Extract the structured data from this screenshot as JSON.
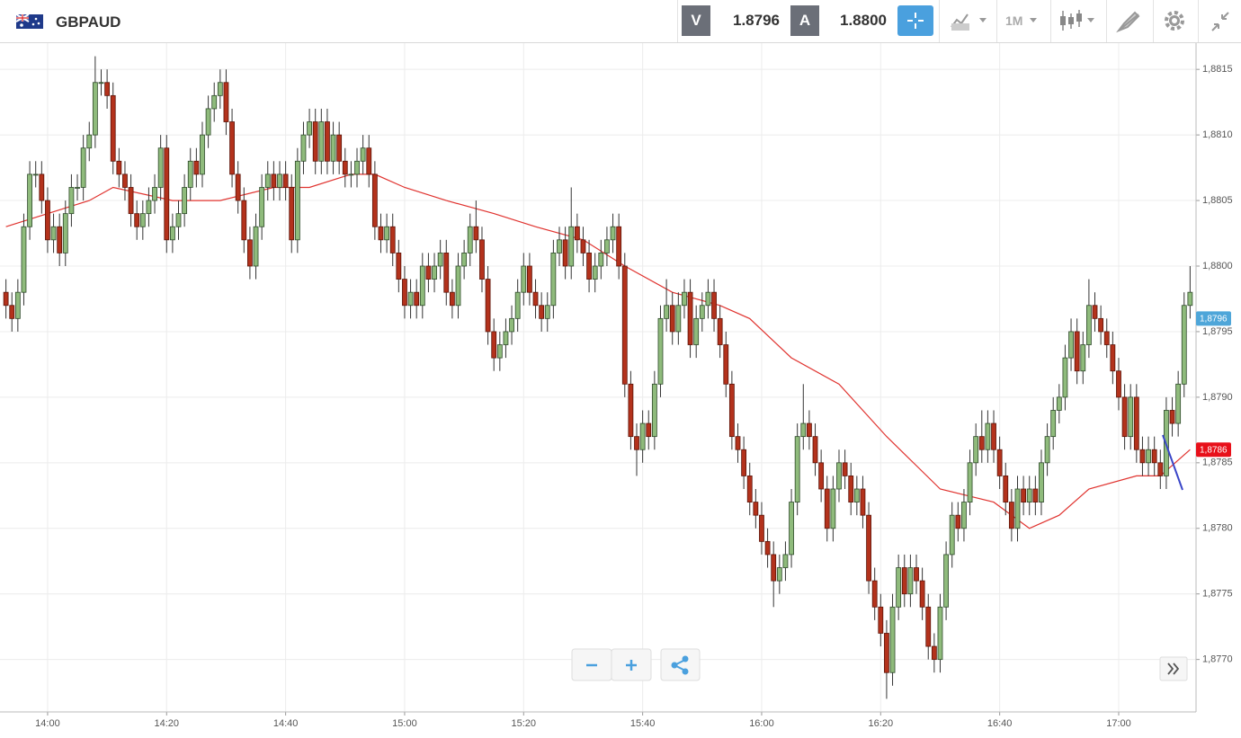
{
  "header": {
    "symbol": "GBPAUD",
    "sell_label": "V",
    "sell_price": "1.8796",
    "buy_label": "A",
    "buy_price": "1.8800",
    "timeframe": "1M"
  },
  "chart_data": {
    "type": "candlestick",
    "x": [
      "13:53",
      "13:54",
      "13:55",
      "13:56",
      "13:57",
      "13:58",
      "13:59",
      "14:00",
      "14:01",
      "14:02",
      "14:03",
      "14:04",
      "14:05",
      "14:06",
      "14:07",
      "14:08",
      "14:09",
      "14:10",
      "14:11",
      "14:12",
      "14:13",
      "14:14",
      "14:15",
      "14:16",
      "14:17",
      "14:18",
      "14:19",
      "14:20",
      "14:21",
      "14:22",
      "14:23",
      "14:24",
      "14:25",
      "14:26",
      "14:27",
      "14:28",
      "14:29",
      "14:30",
      "14:31",
      "14:32",
      "14:33",
      "14:34",
      "14:35",
      "14:36",
      "14:37",
      "14:38",
      "14:39",
      "14:40",
      "14:41",
      "14:42",
      "14:43",
      "14:44",
      "14:45",
      "14:46",
      "14:47",
      "14:48",
      "14:49",
      "14:50",
      "14:51",
      "14:52",
      "14:53",
      "14:54",
      "14:55",
      "14:56",
      "14:57",
      "14:58",
      "14:59",
      "15:00",
      "15:01",
      "15:02",
      "15:03",
      "15:04",
      "15:05",
      "15:06",
      "15:07",
      "15:08",
      "15:09",
      "15:10",
      "15:11",
      "15:12",
      "15:13",
      "15:14",
      "15:15",
      "15:16",
      "15:17",
      "15:18",
      "15:19",
      "15:20",
      "15:21",
      "15:22",
      "15:23",
      "15:24",
      "15:25",
      "15:26",
      "15:27",
      "15:28",
      "15:29",
      "15:30",
      "15:31",
      "15:32",
      "15:33",
      "15:34",
      "15:35",
      "15:36",
      "15:37",
      "15:38",
      "15:39",
      "15:40",
      "15:41",
      "15:42",
      "15:43",
      "15:44",
      "15:45",
      "15:46",
      "15:47",
      "15:48",
      "15:49",
      "15:50",
      "15:51",
      "15:52",
      "15:53",
      "15:54",
      "15:55",
      "15:56",
      "15:57",
      "15:58",
      "15:59",
      "16:00",
      "16:01",
      "16:02",
      "16:03",
      "16:04",
      "16:05",
      "16:06",
      "16:07",
      "16:08",
      "16:09",
      "16:10",
      "16:11",
      "16:12",
      "16:13",
      "16:14",
      "16:15",
      "16:16",
      "16:17",
      "16:18",
      "16:19",
      "16:20",
      "16:21",
      "16:22",
      "16:23",
      "16:24",
      "16:25",
      "16:26",
      "16:27",
      "16:28",
      "16:29",
      "16:30",
      "16:31",
      "16:32",
      "16:33",
      "16:34",
      "16:35",
      "16:36",
      "16:37",
      "16:38",
      "16:39",
      "16:40",
      "16:41",
      "16:42",
      "16:43",
      "16:44",
      "16:45",
      "16:46",
      "16:47",
      "16:48",
      "16:49",
      "16:50",
      "16:51",
      "16:52",
      "16:53",
      "16:54",
      "16:55",
      "16:56",
      "16:57",
      "16:58",
      "16:59",
      "17:00",
      "17:01",
      "17:02",
      "17:03",
      "17:04",
      "17:05",
      "17:06",
      "17:07",
      "17:08",
      "17:09",
      "17:10",
      "17:11",
      "17:12"
    ],
    "open": [
      1.8798,
      1.8797,
      1.8796,
      1.8798,
      1.8803,
      1.8807,
      1.8807,
      1.8805,
      1.8802,
      1.8803,
      1.8801,
      1.8804,
      1.8806,
      1.8806,
      1.8809,
      1.881,
      1.8814,
      1.8814,
      1.8813,
      1.8808,
      1.8807,
      1.8806,
      1.8804,
      1.8803,
      1.8804,
      1.8805,
      1.8806,
      1.8809,
      1.8802,
      1.8803,
      1.8804,
      1.8806,
      1.8808,
      1.8807,
      1.881,
      1.8812,
      1.8813,
      1.8814,
      1.8811,
      1.8807,
      1.8805,
      1.8802,
      1.88,
      1.8803,
      1.8806,
      1.8807,
      1.8806,
      1.8807,
      1.8806,
      1.8802,
      1.8808,
      1.881,
      1.8811,
      1.8808,
      1.8811,
      1.8808,
      1.881,
      1.8808,
      1.8807,
      1.8807,
      1.8808,
      1.8809,
      1.8807,
      1.8803,
      1.8802,
      1.8803,
      1.8801,
      1.8799,
      1.8797,
      1.8798,
      1.8797,
      1.88,
      1.8799,
      1.88,
      1.8801,
      1.8798,
      1.8797,
      1.88,
      1.8801,
      1.8803,
      1.8802,
      1.8799,
      1.8795,
      1.8793,
      1.8794,
      1.8795,
      1.8796,
      1.8798,
      1.88,
      1.8798,
      1.8797,
      1.8796,
      1.8797,
      1.8801,
      1.8802,
      1.88,
      1.8803,
      1.8802,
      1.8801,
      1.8799,
      1.88,
      1.8801,
      1.8802,
      1.8803,
      1.88,
      1.8791,
      1.8787,
      1.8786,
      1.8788,
      1.8787,
      1.8791,
      1.8796,
      1.8797,
      1.8795,
      1.8797,
      1.8798,
      1.8794,
      1.8796,
      1.8797,
      1.8798,
      1.8796,
      1.8794,
      1.8791,
      1.8787,
      1.8786,
      1.8784,
      1.8782,
      1.8781,
      1.8779,
      1.8778,
      1.8776,
      1.8777,
      1.8778,
      1.8782,
      1.8787,
      1.8788,
      1.8787,
      1.8785,
      1.8783,
      1.878,
      1.8783,
      1.8785,
      1.8784,
      1.8782,
      1.8783,
      1.8781,
      1.8776,
      1.8774,
      1.8772,
      1.8769,
      1.8774,
      1.8777,
      1.8775,
      1.8777,
      1.8776,
      1.8774,
      1.8771,
      1.877,
      1.8774,
      1.8778,
      1.8781,
      1.878,
      1.8782,
      1.8785,
      1.8787,
      1.8786,
      1.8788,
      1.8786,
      1.8784,
      1.8782,
      1.878,
      1.8783,
      1.8782,
      1.8783,
      1.8782,
      1.8785,
      1.8787,
      1.8789,
      1.879,
      1.8793,
      1.8795,
      1.8792,
      1.8794,
      1.8797,
      1.8796,
      1.8795,
      1.8794,
      1.8792,
      1.879,
      1.8787,
      1.879,
      1.8786,
      1.8785,
      1.8786,
      1.8785,
      1.8784,
      1.8789,
      1.8788,
      1.8791,
      1.8797
    ],
    "high": [
      1.8799,
      1.8798,
      1.8799,
      1.8804,
      1.8808,
      1.8808,
      1.8808,
      1.8806,
      1.8804,
      1.8804,
      1.8805,
      1.8807,
      1.8807,
      1.881,
      1.8811,
      1.8816,
      1.8815,
      1.8815,
      1.8814,
      1.8809,
      1.8808,
      1.8807,
      1.8805,
      1.8805,
      1.8806,
      1.8807,
      1.881,
      1.881,
      1.8804,
      1.8805,
      1.8807,
      1.8809,
      1.8809,
      1.8811,
      1.8813,
      1.8814,
      1.8815,
      1.8815,
      1.8812,
      1.8808,
      1.8806,
      1.8803,
      1.8804,
      1.8807,
      1.8808,
      1.8808,
      1.8808,
      1.8808,
      1.8807,
      1.8809,
      1.8811,
      1.8812,
      1.8812,
      1.8812,
      1.8812,
      1.8811,
      1.8811,
      1.8809,
      1.8808,
      1.8809,
      1.881,
      1.881,
      1.8808,
      1.8804,
      1.8804,
      1.8804,
      1.8802,
      1.88,
      1.8799,
      1.8799,
      1.8801,
      1.8801,
      1.8801,
      1.8802,
      1.8802,
      1.8799,
      1.8801,
      1.8802,
      1.8804,
      1.8805,
      1.8803,
      1.88,
      1.8796,
      1.8795,
      1.8796,
      1.8797,
      1.8799,
      1.8801,
      1.8801,
      1.8799,
      1.8798,
      1.8798,
      1.8802,
      1.8803,
      1.8803,
      1.8806,
      1.8804,
      1.8803,
      1.8802,
      1.8801,
      1.8802,
      1.8803,
      1.8804,
      1.8804,
      1.8801,
      1.8792,
      1.8788,
      1.8789,
      1.8789,
      1.8792,
      1.8797,
      1.8799,
      1.8798,
      1.8798,
      1.8799,
      1.8799,
      1.8797,
      1.8798,
      1.8799,
      1.8799,
      1.8797,
      1.8795,
      1.8792,
      1.8788,
      1.8787,
      1.8785,
      1.8783,
      1.8782,
      1.878,
      1.8779,
      1.8778,
      1.8779,
      1.8783,
      1.8788,
      1.8791,
      1.8789,
      1.8788,
      1.8786,
      1.8784,
      1.8784,
      1.8786,
      1.8786,
      1.8785,
      1.8784,
      1.8784,
      1.8782,
      1.8777,
      1.8775,
      1.8773,
      1.8775,
      1.8778,
      1.8778,
      1.8778,
      1.8778,
      1.8777,
      1.8775,
      1.8772,
      1.8775,
      1.8779,
      1.8782,
      1.8782,
      1.8783,
      1.8786,
      1.8788,
      1.8789,
      1.8789,
      1.8789,
      1.8787,
      1.8785,
      1.8783,
      1.8784,
      1.8784,
      1.8784,
      1.8784,
      1.8786,
      1.8788,
      1.879,
      1.8791,
      1.8794,
      1.8796,
      1.8796,
      1.8795,
      1.8799,
      1.8798,
      1.8797,
      1.8796,
      1.8795,
      1.8793,
      1.8791,
      1.8791,
      1.8791,
      1.8787,
      1.8787,
      1.8787,
      1.8786,
      1.879,
      1.879,
      1.8792,
      1.8798,
      1.88
    ],
    "low": [
      1.8796,
      1.8795,
      1.8795,
      1.8797,
      1.8802,
      1.8806,
      1.8804,
      1.8801,
      1.8801,
      1.88,
      1.88,
      1.8803,
      1.8805,
      1.8805,
      1.8808,
      1.8809,
      1.8813,
      1.8812,
      1.8807,
      1.8806,
      1.8805,
      1.8803,
      1.8802,
      1.8802,
      1.8803,
      1.8804,
      1.8805,
      1.8801,
      1.8801,
      1.8802,
      1.8803,
      1.8805,
      1.8806,
      1.8806,
      1.8809,
      1.8811,
      1.8812,
      1.881,
      1.8806,
      1.8804,
      1.8801,
      1.8799,
      1.8799,
      1.8802,
      1.8805,
      1.8805,
      1.8805,
      1.8805,
      1.8801,
      1.8801,
      1.8807,
      1.8809,
      1.8807,
      1.8807,
      1.8807,
      1.8807,
      1.8807,
      1.8806,
      1.8806,
      1.8806,
      1.8807,
      1.8806,
      1.8802,
      1.8801,
      1.8801,
      1.88,
      1.8798,
      1.8796,
      1.8796,
      1.8796,
      1.8796,
      1.8798,
      1.8798,
      1.8799,
      1.8797,
      1.8796,
      1.8796,
      1.8799,
      1.88,
      1.8801,
      1.8798,
      1.8794,
      1.8792,
      1.8792,
      1.8793,
      1.8794,
      1.8795,
      1.8797,
      1.8797,
      1.8796,
      1.8795,
      1.8795,
      1.8796,
      1.88,
      1.8799,
      1.8799,
      1.8801,
      1.88,
      1.8798,
      1.8798,
      1.8799,
      1.88,
      1.8801,
      1.8799,
      1.879,
      1.8786,
      1.8784,
      1.8785,
      1.8786,
      1.8786,
      1.879,
      1.8795,
      1.8794,
      1.8794,
      1.8796,
      1.8793,
      1.8793,
      1.8795,
      1.8796,
      1.8795,
      1.8793,
      1.879,
      1.8786,
      1.8785,
      1.8783,
      1.8781,
      1.878,
      1.8778,
      1.8777,
      1.8774,
      1.8775,
      1.8776,
      1.8777,
      1.8781,
      1.8786,
      1.8786,
      1.8784,
      1.8782,
      1.8779,
      1.8779,
      1.8782,
      1.8783,
      1.8781,
      1.8781,
      1.878,
      1.8775,
      1.8773,
      1.8771,
      1.8767,
      1.8768,
      1.8773,
      1.8774,
      1.8774,
      1.8775,
      1.8773,
      1.877,
      1.8769,
      1.8769,
      1.8773,
      1.8777,
      1.8779,
      1.8779,
      1.8781,
      1.8784,
      1.8785,
      1.8785,
      1.8785,
      1.8783,
      1.8781,
      1.8779,
      1.8779,
      1.8781,
      1.8781,
      1.8781,
      1.8781,
      1.8784,
      1.8786,
      1.8788,
      1.8789,
      1.8792,
      1.8791,
      1.8791,
      1.8793,
      1.8795,
      1.8794,
      1.8793,
      1.8791,
      1.8789,
      1.8786,
      1.8786,
      1.8785,
      1.8784,
      1.8784,
      1.8784,
      1.8783,
      1.8783,
      1.8787,
      1.8787,
      1.879,
      1.8796
    ],
    "close": [
      1.8797,
      1.8796,
      1.8798,
      1.8803,
      1.8807,
      1.8807,
      1.8805,
      1.8802,
      1.8803,
      1.8801,
      1.8804,
      1.8806,
      1.8806,
      1.8809,
      1.881,
      1.8814,
      1.8814,
      1.8813,
      1.8808,
      1.8807,
      1.8806,
      1.8804,
      1.8803,
      1.8804,
      1.8805,
      1.8806,
      1.8809,
      1.8802,
      1.8803,
      1.8804,
      1.8806,
      1.8808,
      1.8807,
      1.881,
      1.8812,
      1.8813,
      1.8814,
      1.8811,
      1.8807,
      1.8805,
      1.8802,
      1.88,
      1.8803,
      1.8806,
      1.8807,
      1.8806,
      1.8807,
      1.8806,
      1.8802,
      1.8808,
      1.881,
      1.8811,
      1.8808,
      1.8811,
      1.8808,
      1.881,
      1.8808,
      1.8807,
      1.8807,
      1.8808,
      1.8809,
      1.8807,
      1.8803,
      1.8802,
      1.8803,
      1.8801,
      1.8799,
      1.8797,
      1.8798,
      1.8797,
      1.88,
      1.8799,
      1.88,
      1.8801,
      1.8798,
      1.8797,
      1.88,
      1.8801,
      1.8803,
      1.8802,
      1.8799,
      1.8795,
      1.8793,
      1.8794,
      1.8795,
      1.8796,
      1.8798,
      1.88,
      1.8798,
      1.8797,
      1.8796,
      1.8797,
      1.8801,
      1.8802,
      1.88,
      1.8803,
      1.8802,
      1.8801,
      1.8799,
      1.88,
      1.8801,
      1.8802,
      1.8803,
      1.88,
      1.8791,
      1.8787,
      1.8786,
      1.8788,
      1.8787,
      1.8791,
      1.8796,
      1.8797,
      1.8795,
      1.8797,
      1.8798,
      1.8794,
      1.8796,
      1.8797,
      1.8798,
      1.8796,
      1.8794,
      1.8791,
      1.8787,
      1.8786,
      1.8784,
      1.8782,
      1.8781,
      1.8779,
      1.8778,
      1.8776,
      1.8777,
      1.8778,
      1.8782,
      1.8787,
      1.8788,
      1.8787,
      1.8785,
      1.8783,
      1.878,
      1.8783,
      1.8785,
      1.8784,
      1.8782,
      1.8783,
      1.8781,
      1.8776,
      1.8774,
      1.8772,
      1.8769,
      1.8774,
      1.8777,
      1.8775,
      1.8777,
      1.8776,
      1.8774,
      1.8771,
      1.877,
      1.8774,
      1.8778,
      1.8781,
      1.878,
      1.8782,
      1.8785,
      1.8787,
      1.8786,
      1.8788,
      1.8786,
      1.8784,
      1.8782,
      1.878,
      1.8783,
      1.8782,
      1.8783,
      1.8782,
      1.8785,
      1.8787,
      1.8789,
      1.879,
      1.8793,
      1.8795,
      1.8792,
      1.8794,
      1.8797,
      1.8796,
      1.8795,
      1.8794,
      1.8792,
      1.879,
      1.8787,
      1.879,
      1.8786,
      1.8785,
      1.8786,
      1.8785,
      1.8784,
      1.8789,
      1.8788,
      1.8791,
      1.8797,
      1.8798
    ],
    "up_color": "#8fbb7c",
    "down_color": "#b3321c",
    "ma": {
      "x": [
        "13:53",
        "14:07",
        "14:11",
        "14:21",
        "14:29",
        "14:38",
        "14:44",
        "14:51",
        "14:55",
        "15:00",
        "15:07",
        "15:15",
        "15:22",
        "15:30",
        "15:37",
        "15:45",
        "15:53",
        "15:58",
        "16:05",
        "16:13",
        "16:21",
        "16:30",
        "16:39",
        "16:45",
        "16:50",
        "16:55",
        "17:03",
        "17:07",
        "17:12"
      ],
      "values": [
        1.8803,
        1.8805,
        1.8806,
        1.8805,
        1.8805,
        1.8806,
        1.8806,
        1.8807,
        1.8807,
        1.8806,
        1.8805,
        1.8804,
        1.8803,
        1.8802,
        1.88,
        1.8798,
        1.8797,
        1.8796,
        1.8793,
        1.8791,
        1.8787,
        1.8783,
        1.8782,
        1.878,
        1.8781,
        1.8783,
        1.8784,
        1.8784,
        1.8786
      ],
      "color": "#e0332f"
    },
    "price_tags": [
      {
        "value": 1.8796,
        "label": "1,8796",
        "color": "#4ea6d9"
      },
      {
        "value": 1.8786,
        "label": "1,8786",
        "color": "#e8101a"
      }
    ],
    "xlim": [
      "13:52",
      "17:13"
    ],
    "xticks": [
      "14:00",
      "14:20",
      "14:40",
      "15:00",
      "15:20",
      "15:40",
      "16:00",
      "16:20",
      "16:40",
      "17:00"
    ],
    "ylim": [
      1.8766,
      1.8817
    ],
    "yticks": [
      {
        "value": 1.877,
        "label": "1,8770"
      },
      {
        "value": 1.8775,
        "label": "1,8775"
      },
      {
        "value": 1.878,
        "label": "1,8780"
      },
      {
        "value": 1.8785,
        "label": "1,8785"
      },
      {
        "value": 1.879,
        "label": "1,8790"
      },
      {
        "value": 1.8795,
        "label": "1,8795"
      },
      {
        "value": 1.88,
        "label": "1,8800"
      },
      {
        "value": 1.8805,
        "label": "1,8805"
      },
      {
        "value": 1.881,
        "label": "1,8810"
      },
      {
        "value": 1.8815,
        "label": "1,8815"
      }
    ],
    "grid": true
  }
}
